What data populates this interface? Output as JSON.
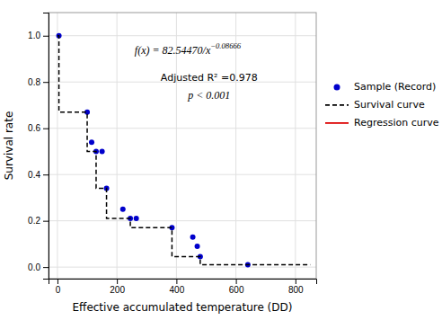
{
  "chart_data": {
    "type": "scatter",
    "x_label": "Effective accumulated temperature (DD)",
    "y_label": "Survival rate",
    "xlim": [
      -30,
      870
    ],
    "ylim": [
      -0.05,
      1.1
    ],
    "xticks": [
      0,
      200,
      400,
      600,
      800
    ],
    "yticks": [
      {
        "value": 0.0,
        "label": "0.0"
      },
      0.2,
      0.4,
      0.6,
      0.8,
      {
        "value": 1.0,
        "label": "1.0"
      }
    ],
    "grid": true,
    "legend": "right",
    "series": [
      {
        "name": "Sample (Record)",
        "type": "scatter",
        "color": "#0000CC",
        "marker": "circle",
        "x": [
          5,
          100,
          115,
          130,
          150,
          165,
          220,
          245,
          265,
          385,
          455,
          470,
          480,
          640
        ],
        "values": [
          1.0,
          0.67,
          0.54,
          0.5,
          0.5,
          0.34,
          0.25,
          0.21,
          0.21,
          0.17,
          0.13,
          0.09,
          0.045,
          0.01
        ]
      },
      {
        "name": "Survival curve",
        "type": "line",
        "color": "#000000",
        "line_style": "dashed",
        "x": [
          0,
          5,
          5,
          100,
          100,
          130,
          130,
          165,
          165,
          245,
          245,
          385,
          385,
          455,
          455,
          480,
          480,
          850
        ],
        "values": [
          1.0,
          1.0,
          0.67,
          0.67,
          0.5,
          0.5,
          0.34,
          0.34,
          0.21,
          0.21,
          0.17,
          0.17,
          0.045,
          0.045,
          0.045,
          0.045,
          0.01,
          0.01
        ]
      },
      {
        "name": "Regression curve",
        "type": "line",
        "color": "#DD0000",
        "line_style": "solid",
        "x": [],
        "values": []
      }
    ],
    "annotations": [
      "f(x) = 82.54470/x−0.08666",
      "Adjusted R² =0.978",
      "p < 0.001"
    ]
  }
}
